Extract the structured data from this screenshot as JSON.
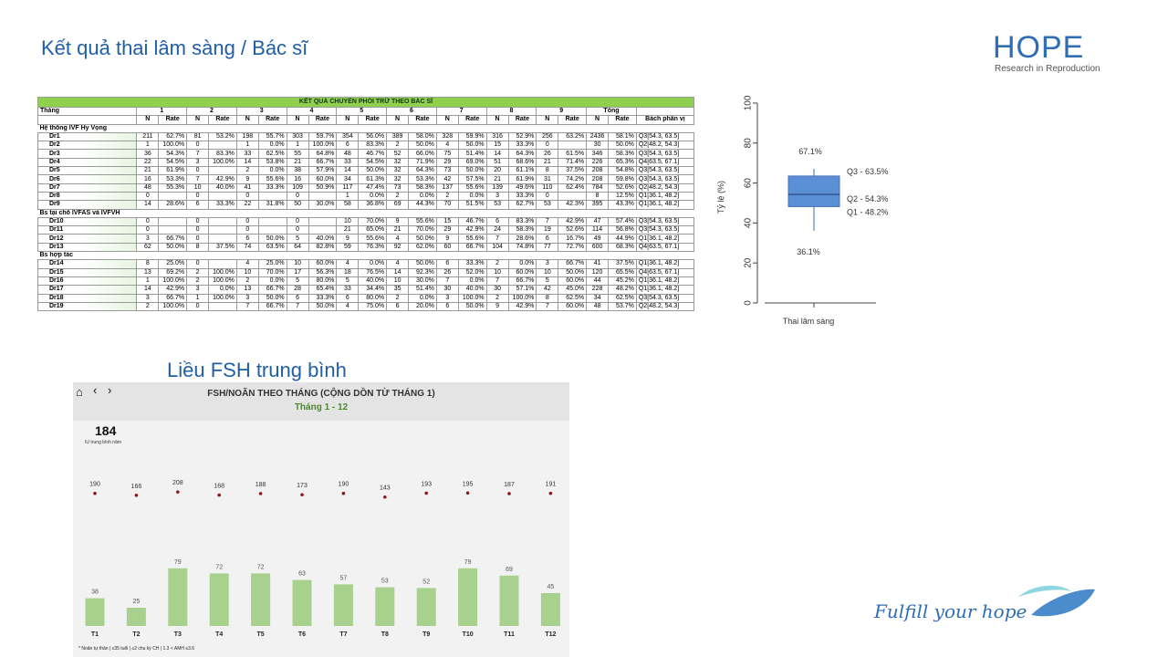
{
  "slide": {
    "title": "Kết quả thai lâm sàng / Bác sĩ",
    "fsh_title": "Liều FSH trung bình",
    "tagline": "Fulfill your hope",
    "logo": {
      "word": "HOPE",
      "subtitle": "Research in Reproduction"
    }
  },
  "table": {
    "title": "KẾT QUẢ CHUYỂN PHÔI TRỮ THEO BÁC SĨ",
    "month_label": "Tháng",
    "months": [
      "1",
      "2",
      "3",
      "4",
      "5",
      "6",
      "7",
      "8",
      "9"
    ],
    "total_label": "Tổng",
    "n_label": "N",
    "rate_label": "Rate",
    "percentile_label": "Bách phân vị",
    "groups": [
      {
        "name": "Hệ thống IVF Hy Vọng",
        "rows": [
          {
            "dr": "Dr1",
            "cells": [
              "211",
              "62.7%",
              "81",
              "53.2%",
              "198",
              "55.7%",
              "303",
              "59.7%",
              "354",
              "56.0%",
              "389",
              "58.0%",
              "328",
              "59.9%",
              "316",
              "52.9%",
              "256",
              "63.2%",
              "2436",
              "58.1%"
            ],
            "pct": "Q3[54.3, 63.5]"
          },
          {
            "dr": "Dr2",
            "cells": [
              "1",
              "100.0%",
              "0",
              "",
              "1",
              "0.0%",
              "1",
              "100.0%",
              "6",
              "83.3%",
              "2",
              "50.0%",
              "4",
              "50.0%",
              "15",
              "33.3%",
              "0",
              "",
              "30",
              "50.0%"
            ],
            "pct": "Q2[48.2, 54.3]"
          },
          {
            "dr": "Dr3",
            "cells": [
              "36",
              "54.3%",
              "7",
              "83.3%",
              "33",
              "62.5%",
              "55",
              "64.8%",
              "48",
              "46.7%",
              "52",
              "66.0%",
              "75",
              "51.4%",
              "14",
              "64.3%",
              "26",
              "61.5%",
              "346",
              "58.3%"
            ],
            "pct": "Q3[54.3, 63.5]"
          },
          {
            "dr": "Dr4",
            "cells": [
              "22",
              "54.5%",
              "3",
              "100.0%",
              "14",
              "53.8%",
              "21",
              "66.7%",
              "33",
              "54.5%",
              "32",
              "71.9%",
              "29",
              "69.0%",
              "51",
              "68.6%",
              "21",
              "71.4%",
              "226",
              "65.3%"
            ],
            "pct": "Q4[63.5, 67.1]"
          },
          {
            "dr": "Dr5",
            "cells": [
              "21",
              "61.9%",
              "0",
              "",
              "2",
              "0.0%",
              "38",
              "57.9%",
              "14",
              "50.0%",
              "32",
              "64.3%",
              "73",
              "50.0%",
              "20",
              "61.1%",
              "8",
              "37.5%",
              "208",
              "54.8%"
            ],
            "pct": "Q3[54.3, 63.5]"
          },
          {
            "dr": "Dr6",
            "cells": [
              "16",
              "53.3%",
              "7",
              "42.9%",
              "9",
              "55.6%",
              "16",
              "60.0%",
              "34",
              "61.3%",
              "32",
              "53.3%",
              "42",
              "57.5%",
              "21",
              "61.9%",
              "31",
              "74.2%",
              "208",
              "59.8%"
            ],
            "pct": "Q3[54.3, 63.5]"
          },
          {
            "dr": "Dr7",
            "cells": [
              "48",
              "55.3%",
              "10",
              "40.0%",
              "41",
              "33.3%",
              "109",
              "50.9%",
              "117",
              "47.4%",
              "73",
              "58.3%",
              "137",
              "55.6%",
              "139",
              "49.6%",
              "110",
              "62.4%",
              "784",
              "52.6%"
            ],
            "pct": "Q2[48.2, 54.3]"
          },
          {
            "dr": "Dr8",
            "cells": [
              "0",
              "",
              "0",
              "",
              "0",
              "",
              "0",
              "",
              "1",
              "0.0%",
              "2",
              "0.0%",
              "2",
              "0.0%",
              "3",
              "33.3%",
              "0",
              "",
              "8",
              "12.5%"
            ],
            "pct": "Q1[36.1, 48.2]"
          },
          {
            "dr": "Dr9",
            "cells": [
              "14",
              "28.6%",
              "6",
              "33.3%",
              "22",
              "31.8%",
              "50",
              "30.0%",
              "58",
              "36.8%",
              "69",
              "44.3%",
              "70",
              "51.5%",
              "53",
              "62.7%",
              "53",
              "42.3%",
              "395",
              "43.3%"
            ],
            "pct": "Q1[36.1, 48.2]"
          }
        ]
      },
      {
        "name": "Bs tại chỗ IVFAS và IVFVH",
        "rows": [
          {
            "dr": "Dr10",
            "cells": [
              "0",
              "",
              "0",
              "",
              "0",
              "",
              "0",
              "",
              "10",
              "70.0%",
              "9",
              "55.6%",
              "15",
              "46.7%",
              "6",
              "83.3%",
              "7",
              "42.9%",
              "47",
              "57.4%"
            ],
            "pct": "Q3[54.3, 63.5]"
          },
          {
            "dr": "Dr11",
            "cells": [
              "0",
              "",
              "0",
              "",
              "0",
              "",
              "0",
              "",
              "21",
              "65.0%",
              "21",
              "70.0%",
              "29",
              "42.9%",
              "24",
              "58.3%",
              "19",
              "52.6%",
              "114",
              "56.8%"
            ],
            "pct": "Q3[54.3, 63.5]"
          },
          {
            "dr": "Dr12",
            "cells": [
              "3",
              "66.7%",
              "0",
              "",
              "6",
              "50.0%",
              "5",
              "40.0%",
              "9",
              "55.6%",
              "4",
              "50.0%",
              "9",
              "55.6%",
              "7",
              "28.6%",
              "6",
              "16.7%",
              "49",
              "44.9%"
            ],
            "pct": "Q1[36.1, 48.2]"
          },
          {
            "dr": "Dr13",
            "cells": [
              "62",
              "50.0%",
              "8",
              "37.5%",
              "74",
              "63.5%",
              "64",
              "82.8%",
              "59",
              "76.3%",
              "92",
              "62.0%",
              "60",
              "66.7%",
              "104",
              "74.8%",
              "77",
              "72.7%",
              "600",
              "68.3%"
            ],
            "pct": "Q4[63.5, 67.1]"
          }
        ]
      },
      {
        "name": "Bs hợp tác",
        "rows": [
          {
            "dr": "Dr14",
            "cells": [
              "8",
              "25.0%",
              "0",
              "",
              "4",
              "25.0%",
              "10",
              "60.0%",
              "4",
              "0.0%",
              "4",
              "50.0%",
              "6",
              "33.3%",
              "2",
              "0.0%",
              "3",
              "66.7%",
              "41",
              "37.5%"
            ],
            "pct": "Q1[36.1, 48.2]"
          },
          {
            "dr": "Dr15",
            "cells": [
              "13",
              "69.2%",
              "2",
              "100.0%",
              "10",
              "70.0%",
              "17",
              "56.3%",
              "18",
              "76.5%",
              "14",
              "92.3%",
              "26",
              "52.0%",
              "10",
              "60.0%",
              "10",
              "50.0%",
              "120",
              "65.5%"
            ],
            "pct": "Q4[63.5, 67.1]"
          },
          {
            "dr": "Dr16",
            "cells": [
              "1",
              "100.0%",
              "2",
              "100.0%",
              "2",
              "0.0%",
              "5",
              "80.0%",
              "5",
              "40.0%",
              "10",
              "30.0%",
              "7",
              "0.0%",
              "7",
              "66.7%",
              "5",
              "60.0%",
              "44",
              "45.2%"
            ],
            "pct": "Q1[36.1, 48.2]"
          },
          {
            "dr": "Dr17",
            "cells": [
              "14",
              "42.9%",
              "3",
              "0.0%",
              "13",
              "66.7%",
              "28",
              "65.4%",
              "33",
              "34.4%",
              "35",
              "51.4%",
              "30",
              "40.0%",
              "30",
              "57.1%",
              "42",
              "45.0%",
              "228",
              "48.2%"
            ],
            "pct": "Q1[36.1, 48.2]"
          },
          {
            "dr": "Dr18",
            "cells": [
              "3",
              "66.7%",
              "1",
              "100.0%",
              "3",
              "50.0%",
              "6",
              "33.3%",
              "6",
              "80.0%",
              "2",
              "0.0%",
              "3",
              "100.0%",
              "2",
              "100.0%",
              "8",
              "62.5%",
              "34",
              "62.5%"
            ],
            "pct": "Q3[54.3, 63.5]"
          },
          {
            "dr": "Dr19",
            "cells": [
              "2",
              "100.0%",
              "0",
              "",
              "7",
              "66.7%",
              "7",
              "50.0%",
              "4",
              "75.0%",
              "6",
              "20.0%",
              "6",
              "50.0%",
              "9",
              "42.9%",
              "7",
              "60.0%",
              "48",
              "53.7%"
            ],
            "pct": "Q2[48.2, 54.3]"
          }
        ]
      }
    ]
  },
  "chart_data": [
    {
      "type": "box",
      "ylabel": "Tỷ lệ (%)",
      "xlabel": "Thai lâm sàng",
      "ylim": [
        0,
        105
      ],
      "yticks": [
        "0",
        "20",
        "40",
        "60",
        "80",
        "100"
      ],
      "stats": {
        "min": 36.1,
        "q1": 48.2,
        "median": 54.3,
        "q3": 63.5,
        "max": 67.1
      },
      "labels": {
        "max": "67.1%",
        "min": "36.1%",
        "q3": "Q3 - 63.5%",
        "q2": "Q2 - 54.3%",
        "q1": "Q1 - 48.2%"
      },
      "color": "#5b8fd6"
    },
    {
      "type": "bar",
      "title": "FSH/NOÃN THEO THÁNG (CỘNG DỒN TỪ THÁNG 1)",
      "subtitle": "Tháng 1 - 12",
      "kpi_value": "184",
      "kpi_label": "IU trung bình năm",
      "categories": [
        "T1",
        "T2",
        "T3",
        "T4",
        "T5",
        "T6",
        "T7",
        "T8",
        "T9",
        "T10",
        "T11",
        "T12"
      ],
      "series": [
        {
          "values": [
            38,
            25,
            79,
            72,
            72,
            63,
            57,
            53,
            52,
            79,
            69,
            45
          ]
        },
        {
          "values": [
            190,
            166,
            208,
            168,
            188,
            173,
            190,
            143,
            193,
            195,
            187,
            191
          ]
        }
      ],
      "footnote": "* Noãn tự thân | ≤35 tuổi | ≤2 chu kỳ CH | 1.3 < AMH ≤3.6",
      "bar_color": "#a9d18e",
      "dot_color": "#8b1a1a"
    }
  ]
}
